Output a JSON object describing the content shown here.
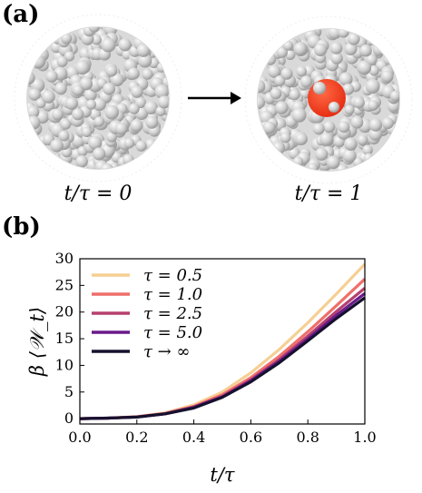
{
  "panel_a": {
    "label": "(a)",
    "left_caption": "t/τ = 0",
    "right_caption": "t/τ = 1",
    "colors": {
      "sphere": "#c8c8c8",
      "sphere_highlight": "#f2f2f2",
      "inclusion": "#ff3a1a"
    }
  },
  "panel_b": {
    "label": "(b)"
  },
  "chart_data": {
    "type": "line",
    "xlabel": "t/τ",
    "ylabel": "β ⟨𝒲_t⟩",
    "xlim": [
      0.0,
      1.0
    ],
    "ylim": [
      -1,
      30
    ],
    "xticks": [
      "0.0",
      "0.2",
      "0.4",
      "0.6",
      "0.8",
      "1.0"
    ],
    "yticks": [
      "0",
      "5",
      "10",
      "15",
      "20",
      "25",
      "30"
    ],
    "legend_position": "top-left",
    "x": [
      0.0,
      0.1,
      0.2,
      0.3,
      0.4,
      0.5,
      0.6,
      0.7,
      0.8,
      0.9,
      1.0
    ],
    "series": [
      {
        "name": "τ = 0.5",
        "color": "#f6cf94",
        "values": [
          0,
          0.1,
          0.4,
          1.1,
          2.6,
          5.0,
          8.6,
          13.0,
          18.0,
          23.4,
          29.0
        ]
      },
      {
        "name": "τ = 1.0",
        "color": "#ef6f6a",
        "values": [
          0,
          0.1,
          0.35,
          1.0,
          2.3,
          4.5,
          7.7,
          11.7,
          16.3,
          21.2,
          26.2
        ]
      },
      {
        "name": "τ = 2.5",
        "color": "#b5406f",
        "values": [
          0,
          0.1,
          0.33,
          0.95,
          2.2,
          4.2,
          7.3,
          11.1,
          15.5,
          20.1,
          24.5
        ]
      },
      {
        "name": "τ = 5.0",
        "color": "#6a1a8a",
        "values": [
          0,
          0.1,
          0.32,
          0.9,
          2.1,
          4.1,
          7.1,
          10.8,
          15.0,
          19.4,
          23.5
        ]
      },
      {
        "name": "τ → ∞",
        "color": "#16112e",
        "values": [
          0,
          0.1,
          0.3,
          0.9,
          2.0,
          4.0,
          6.9,
          10.5,
          14.6,
          18.8,
          22.7
        ]
      }
    ]
  }
}
